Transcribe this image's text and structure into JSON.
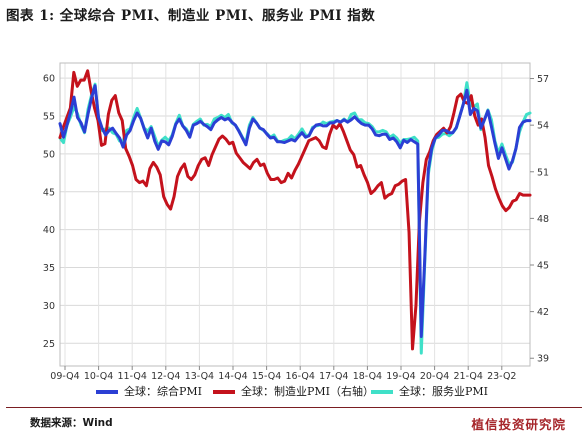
{
  "title": "图表 1: 全球综合 PMI、制造业 PMI、服务业 PMI 指数",
  "source": "数据来源：Wind",
  "brand": "植信投资研究院",
  "chart_data": {
    "type": "line",
    "x_ticks": [
      "09-Q4",
      "10-Q4",
      "11-Q4",
      "12-Q4",
      "13-Q4",
      "14-Q4",
      "15-Q4",
      "16-Q4",
      "17-Q4",
      "18-Q4",
      "19-Q4",
      "20-Q4",
      "21-Q4",
      "23-Q2"
    ],
    "left_axis": {
      "ylim": [
        22,
        62
      ],
      "ticks": [
        25,
        30,
        35,
        40,
        45,
        50,
        55,
        60
      ]
    },
    "right_axis": {
      "ylim": [
        38.5,
        58
      ],
      "ticks": [
        39,
        42,
        45,
        48,
        51,
        54,
        57
      ]
    },
    "x_start": "2009-10",
    "grid": true,
    "series": [
      {
        "name": "全球：综合PMI",
        "color": "#2b3fd4",
        "axis": "left",
        "values": [
          54.0,
          52.2,
          53.8,
          55.5,
          57.5,
          54.8,
          54.1,
          52.9,
          55.3,
          57.4,
          59.0,
          54.8,
          53.4,
          52.5,
          53.1,
          53.4,
          52.7,
          52.1,
          50.9,
          52.5,
          53.1,
          54.4,
          55.4,
          54.7,
          53.3,
          52.1,
          53.4,
          51.7,
          50.6,
          51.7,
          51.6,
          51.2,
          52.3,
          53.9,
          54.6,
          53.7,
          53.1,
          52.2,
          53.8,
          54.0,
          54.3,
          53.9,
          53.6,
          53.2,
          54.1,
          54.5,
          54.8,
          54.5,
          54.7,
          54.2,
          53.8,
          53.0,
          52.1,
          51.2,
          53.4,
          54.6,
          54.1,
          53.4,
          53.2,
          52.6,
          52.1,
          52.2,
          51.6,
          51.6,
          51.5,
          51.7,
          51.9,
          51.7,
          52.3,
          52.8,
          52.2,
          52.4,
          53.3,
          53.8,
          53.9,
          53.7,
          53.7,
          54.1,
          54.1,
          54.4,
          54.2,
          54.5,
          54.2,
          54.5,
          54.9,
          54.4,
          54.0,
          53.8,
          53.8,
          53.3,
          52.5,
          52.4,
          52.6,
          52.6,
          51.9,
          52.1,
          51.6,
          50.8,
          51.8,
          51.5,
          51.9,
          51.6,
          51.3,
          25.9,
          36.3,
          47.9,
          50.8,
          52.1,
          52.5,
          53.1,
          53.1,
          52.8,
          52.8,
          53.5,
          55.0,
          56.6,
          58.4,
          55.2,
          56.0,
          55.7,
          53.4,
          54.5,
          55.7,
          53.6,
          51.4,
          49.4,
          50.8,
          49.4,
          48.0,
          49.1,
          50.7,
          53.5,
          54.2,
          54.4,
          54.4
        ]
      },
      {
        "name": "全球：制造业PMI（右轴）",
        "color": "#c4121c",
        "axis": "right",
        "values": [
          53.2,
          53.9,
          54.5,
          55.1,
          57.4,
          56.5,
          56.9,
          56.9,
          57.5,
          56.2,
          55.1,
          54.3,
          52.7,
          52.8,
          54.7,
          55.6,
          55.9,
          54.8,
          54.3,
          52.5,
          52.0,
          51.4,
          50.5,
          50.3,
          50.4,
          50.1,
          51.2,
          51.6,
          51.3,
          50.8,
          49.4,
          48.9,
          48.6,
          49.4,
          50.7,
          51.2,
          51.5,
          50.7,
          50.5,
          50.8,
          51.4,
          51.8,
          51.9,
          51.4,
          52.1,
          52.6,
          53.1,
          53.3,
          53.1,
          52.8,
          52.9,
          52.2,
          51.9,
          51.6,
          51.4,
          51.2,
          51.6,
          51.8,
          51.4,
          51.5,
          50.9,
          50.5,
          50.5,
          50.6,
          50.3,
          50.4,
          50.9,
          50.6,
          51.1,
          51.5,
          52.0,
          52.5,
          53.0,
          53.1,
          53.2,
          53.0,
          52.6,
          52.5,
          53.4,
          54.0,
          53.8,
          54.1,
          53.6,
          53.0,
          52.4,
          52.1,
          51.3,
          51.4,
          50.8,
          50.3,
          49.6,
          49.8,
          50.1,
          50.3,
          49.3,
          49.5,
          49.6,
          50.1,
          50.2,
          50.4,
          50.5,
          47.1,
          39.6,
          42.4,
          47.8,
          50.3,
          51.8,
          52.3,
          53.0,
          53.4,
          53.6,
          53.8,
          53.5,
          53.9,
          54.8,
          55.8,
          56.0,
          55.5,
          55.4,
          55.9,
          54.6,
          54.0,
          54.4,
          53.2,
          51.4,
          50.7,
          49.9,
          49.3,
          48.8,
          48.5,
          48.7,
          49.1,
          49.2,
          49.6,
          49.5,
          49.5,
          49.5
        ]
      },
      {
        "name": "全球：服务业PMI",
        "color": "#3fe0c8",
        "axis": "left",
        "values": [
          52.1,
          51.5,
          53.8,
          54.9,
          56.2,
          55.3,
          53.8,
          52.8,
          55.9,
          57.8,
          59.2,
          54.5,
          53.1,
          53.3,
          53.4,
          52.8,
          52.6,
          51.7,
          51.7,
          53.1,
          53.3,
          54.8,
          56.0,
          54.7,
          53.4,
          53.0,
          53.6,
          52.3,
          51.0,
          51.8,
          52.2,
          51.7,
          52.5,
          54.0,
          55.1,
          53.7,
          53.3,
          52.5,
          53.9,
          54.3,
          54.6,
          53.8,
          53.9,
          53.6,
          54.6,
          54.8,
          55.1,
          54.8,
          55.2,
          54.1,
          53.8,
          53.1,
          52.2,
          51.5,
          53.8,
          54.8,
          54.1,
          53.4,
          53.1,
          52.7,
          52.2,
          52.5,
          51.7,
          51.6,
          51.8,
          51.9,
          52.4,
          52.0,
          52.6,
          53.3,
          52.5,
          52.4,
          53.5,
          53.7,
          53.8,
          54.2,
          54.0,
          54.2,
          54.3,
          54.4,
          54.2,
          54.6,
          54.2,
          55.2,
          55.4,
          54.5,
          54.5,
          54.1,
          54.0,
          53.6,
          52.9,
          52.9,
          53.1,
          52.9,
          52.2,
          52.5,
          52.1,
          51.4,
          51.9,
          51.9,
          52.0,
          52.2,
          51.7,
          23.7,
          35.7,
          47.3,
          50.4,
          52.1,
          52.2,
          52.6,
          52.7,
          52.4,
          52.8,
          53.4,
          55.1,
          56.6,
          59.4,
          56.5,
          56.2,
          56.6,
          53.2,
          54.5,
          55.8,
          54.5,
          51.7,
          50.1,
          51.3,
          49.9,
          48.7,
          48.9,
          50.8,
          52.9,
          54.2,
          55.2,
          55.4
        ]
      }
    ]
  }
}
